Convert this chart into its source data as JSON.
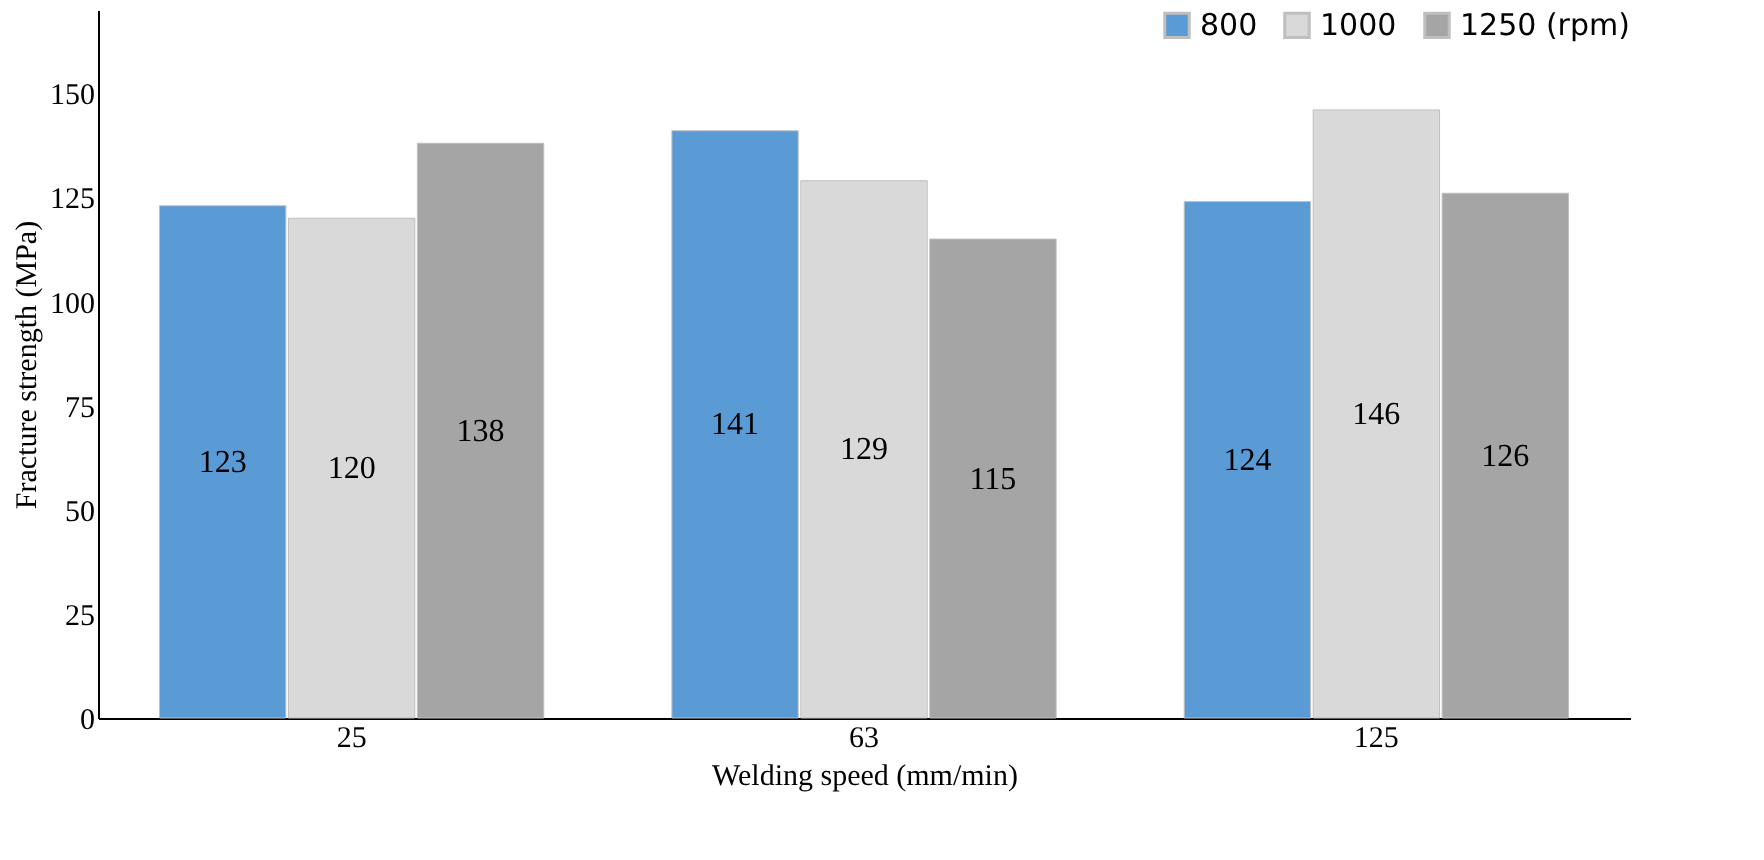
{
  "chart_data": {
    "type": "bar",
    "xlabel": "Welding speed (mm/min)",
    "ylabel": "Fracture strength (MPa)",
    "categories": [
      "25",
      "63",
      "125"
    ],
    "series": [
      {
        "name": "800",
        "color": "#5b9bd5",
        "values": [
          123,
          141,
          124
        ]
      },
      {
        "name": "1000",
        "color": "#d9d9d9",
        "values": [
          120,
          129,
          146
        ]
      },
      {
        "name": "1250 (rpm)",
        "color": "#a5a5a5",
        "values": [
          138,
          115,
          126
        ]
      }
    ],
    "ylim": [
      0,
      170
    ],
    "yticks": [
      0,
      25,
      50,
      75,
      100,
      125,
      150
    ],
    "data_labels": true,
    "legend": "top right",
    "grid": false
  }
}
